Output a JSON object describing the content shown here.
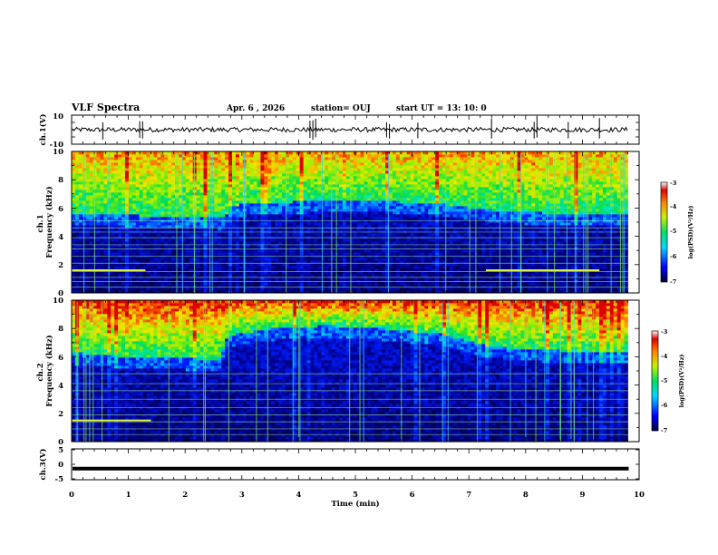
{
  "header": {
    "title": "VLF Spectra",
    "date": "Apr. 6  , 2026",
    "station": "station= OUJ",
    "start_ut": "start  UT  =   13: 10: 0"
  },
  "chart_data": [
    {
      "type": "line",
      "name": "ch1-waveform",
      "ylabel": "ch.1(V)",
      "ylim": [
        -10,
        10
      ],
      "yticks": [
        "10",
        "-10"
      ],
      "baseline": 0,
      "spike_times_min": [
        0.55,
        1.2,
        1.25,
        4.2,
        4.25,
        4.3,
        5.55,
        5.6,
        6.1,
        7.4,
        8.15,
        8.2,
        8.75,
        9.3
      ],
      "xlim": [
        0,
        10
      ]
    },
    {
      "type": "heatmap",
      "name": "ch1-spectrogram",
      "ylabel": "ch.1\nFrequency (kHz)",
      "ylim": [
        0,
        10
      ],
      "yticks": [
        "0",
        "2",
        "4",
        "6",
        "8",
        "10"
      ],
      "xlim": [
        0,
        10
      ],
      "data_end_min": 9.8,
      "colorbar": {
        "label": "log(PSD)(V²/Hz)",
        "range": [
          -7,
          -3
        ],
        "ticks": [
          "-3",
          "-4",
          "-5",
          "-6",
          "-7"
        ]
      },
      "quiet_band_upper_khz": [
        [
          0,
          5.6
        ],
        [
          1,
          5.5
        ],
        [
          2,
          5.4
        ],
        [
          2.7,
          5.3
        ],
        [
          2.8,
          6.2
        ],
        [
          3.5,
          6.4
        ],
        [
          4.5,
          6.5
        ],
        [
          5.5,
          6.5
        ],
        [
          6.5,
          6.3
        ],
        [
          7.3,
          5.9
        ],
        [
          8.0,
          5.7
        ],
        [
          9.0,
          5.6
        ],
        [
          9.8,
          5.6
        ]
      ],
      "interference_lines_khz": [
        0.4,
        0.8,
        1.1,
        1.5,
        2.1,
        2.6,
        3.1,
        3.4,
        3.9,
        4.3,
        4.6,
        5.1
      ],
      "bright_line_khz": 1.6,
      "bright_line_spans_min": [
        [
          0,
          1.3
        ],
        [
          7.3,
          9.3
        ]
      ]
    },
    {
      "type": "heatmap",
      "name": "ch2-spectrogram",
      "ylabel": "ch.2\nFrequency (kHz)",
      "ylim": [
        0,
        10
      ],
      "yticks": [
        "0",
        "2",
        "4",
        "6",
        "8",
        "10"
      ],
      "xlim": [
        0,
        10
      ],
      "data_end_min": 9.8,
      "colorbar": {
        "label": "log(PSD)(V²/Hz)",
        "range": [
          -7,
          -3
        ],
        "ticks": [
          "-3",
          "-4",
          "-5",
          "-6",
          "-7"
        ]
      },
      "quiet_band_upper_khz": [
        [
          0,
          6.3
        ],
        [
          1,
          6.0
        ],
        [
          2,
          5.9
        ],
        [
          2.6,
          5.8
        ],
        [
          2.75,
          7.5
        ],
        [
          3.5,
          8.0
        ],
        [
          4.5,
          8.2
        ],
        [
          5.5,
          8.0
        ],
        [
          6.5,
          7.6
        ],
        [
          7.3,
          6.8
        ],
        [
          8.0,
          6.5
        ],
        [
          9.0,
          6.4
        ],
        [
          9.8,
          6.4
        ]
      ],
      "interference_lines_khz": [
        0.5,
        0.9,
        1.4,
        1.9,
        2.4,
        3.0,
        3.6,
        4.1,
        4.8
      ],
      "bright_line_khz": 1.5,
      "bright_line_spans_min": [
        [
          0,
          1.4
        ]
      ]
    },
    {
      "type": "line",
      "name": "ch3-waveform",
      "ylabel": "ch.3(V)",
      "ylim": [
        -5,
        5
      ],
      "yticks": [
        "5",
        "0",
        "-5"
      ],
      "value": -1.5,
      "xlim": [
        0,
        10
      ]
    }
  ],
  "x_axis": {
    "label": "Time (min)",
    "ticks": [
      "0",
      "1",
      "2",
      "3",
      "4",
      "5",
      "6",
      "7",
      "8",
      "9",
      "10"
    ]
  }
}
